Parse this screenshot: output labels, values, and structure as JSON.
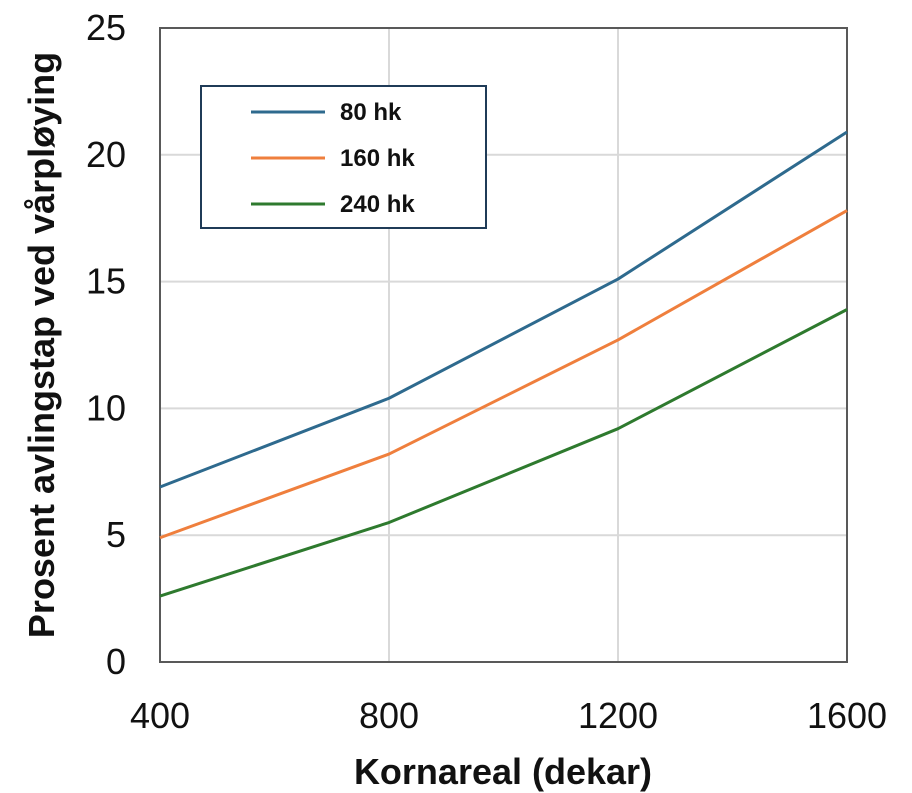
{
  "chart_data": {
    "type": "line",
    "xlabel": "Kornareal (dekar)",
    "ylabel": "Prosent avlingstap ved vårpløying",
    "x": [
      400,
      800,
      1200,
      1600
    ],
    "x_ticks": [
      "400",
      "800",
      "1200",
      "1600"
    ],
    "y_ticks": [
      "0",
      "5",
      "10",
      "15",
      "20",
      "25"
    ],
    "xlim": [
      400,
      1600
    ],
    "ylim": [
      0,
      25
    ],
    "grid": true,
    "legend_position": "top-left",
    "series": [
      {
        "name": "80 hk",
        "color": "#2e6a8e",
        "values": [
          6.9,
          10.4,
          15.1,
          20.9
        ]
      },
      {
        "name": "160 hk",
        "color": "#ef7f3d",
        "values": [
          4.9,
          8.2,
          12.7,
          17.8
        ]
      },
      {
        "name": "240 hk",
        "color": "#2e7a2e",
        "values": [
          2.6,
          5.5,
          9.2,
          13.9
        ]
      }
    ]
  }
}
